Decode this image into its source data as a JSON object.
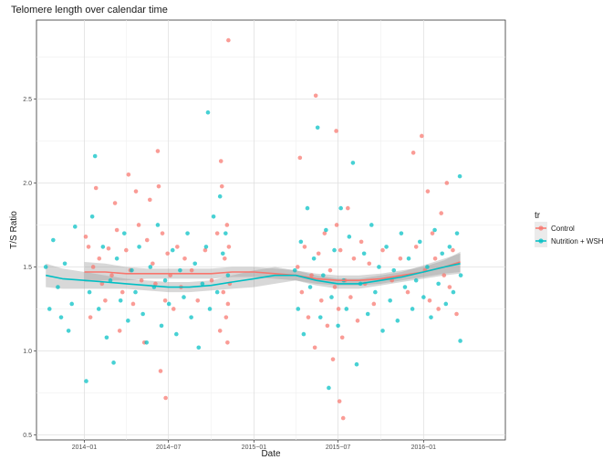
{
  "chart_data": {
    "type": "scatter",
    "title": "Telomere length over calendar time",
    "xlabel": "Date",
    "ylabel": "T/S Ratio",
    "x_axis": {
      "type": "date",
      "range": [
        "2013-09-20",
        "2016-06-25"
      ],
      "ticks": [
        {
          "date": "2014-01-01",
          "label": "2014−01"
        },
        {
          "date": "2014-07-01",
          "label": "2014−07"
        },
        {
          "date": "2015-01-01",
          "label": "2015−01"
        },
        {
          "date": "2015-07-01",
          "label": "2015−07"
        },
        {
          "date": "2016-01-01",
          "label": "2016−01"
        }
      ]
    },
    "y_axis": {
      "range": [
        0.47,
        2.97
      ],
      "ticks": [
        {
          "value": 0.5,
          "label": "0.5"
        },
        {
          "value": 1.0,
          "label": "1.0"
        },
        {
          "value": 1.5,
          "label": "1.5"
        },
        {
          "value": 2.0,
          "label": "2.0"
        },
        {
          "value": 2.5,
          "label": "2.5"
        }
      ]
    },
    "grid": true,
    "legend": {
      "title": "tr",
      "placement": "right",
      "entries": [
        "Control",
        "Nutrition + WSH"
      ]
    },
    "series": [
      {
        "name": "Control",
        "color": "#F8766D",
        "points": [
          [
            "2014-01-04",
            1.68
          ],
          [
            "2014-01-10",
            1.62
          ],
          [
            "2014-01-14",
            1.2
          ],
          [
            "2014-01-20",
            1.5
          ],
          [
            "2014-01-26",
            1.97
          ],
          [
            "2014-02-02",
            1.55
          ],
          [
            "2014-02-08",
            1.4
          ],
          [
            "2014-02-15",
            1.3
          ],
          [
            "2014-02-22",
            1.61
          ],
          [
            "2014-03-01",
            1.45
          ],
          [
            "2014-03-08",
            1.88
          ],
          [
            "2014-03-12",
            1.72
          ],
          [
            "2014-03-18",
            1.12
          ],
          [
            "2014-03-24",
            1.35
          ],
          [
            "2014-04-01",
            1.6
          ],
          [
            "2014-04-06",
            2.05
          ],
          [
            "2014-04-10",
            1.48
          ],
          [
            "2014-04-16",
            1.28
          ],
          [
            "2014-04-22",
            1.95
          ],
          [
            "2014-04-28",
            1.75
          ],
          [
            "2014-05-04",
            1.42
          ],
          [
            "2014-05-10",
            1.05
          ],
          [
            "2014-05-16",
            1.66
          ],
          [
            "2014-05-22",
            1.9
          ],
          [
            "2014-05-28",
            1.52
          ],
          [
            "2014-06-03",
            1.4
          ],
          [
            "2014-06-08",
            2.19
          ],
          [
            "2014-06-10",
            1.98
          ],
          [
            "2014-06-14",
            0.88
          ],
          [
            "2014-06-18",
            1.7
          ],
          [
            "2014-06-24",
            1.3
          ],
          [
            "2014-06-29",
            1.58
          ],
          [
            "2014-07-05",
            1.45
          ],
          [
            "2014-07-12",
            1.25
          ],
          [
            "2014-07-20",
            1.62
          ],
          [
            "2014-07-28",
            1.38
          ],
          [
            "2014-06-25",
            0.72
          ],
          [
            "2014-08-05",
            1.55
          ],
          [
            "2014-08-20",
            1.48
          ],
          [
            "2014-09-02",
            1.3
          ],
          [
            "2014-09-18",
            1.6
          ],
          [
            "2014-10-02",
            1.42
          ],
          [
            "2014-10-14",
            1.7
          ],
          [
            "2014-10-22",
            2.13
          ],
          [
            "2014-10-24",
            1.98
          ],
          [
            "2014-10-27",
            1.35
          ],
          [
            "2014-10-30",
            1.55
          ],
          [
            "2014-11-02",
            1.2
          ],
          [
            "2014-11-04",
            1.75
          ],
          [
            "2014-11-06",
            1.28
          ],
          [
            "2014-11-07",
            2.85
          ],
          [
            "2014-11-08",
            1.62
          ],
          [
            "2014-11-10",
            1.4
          ],
          [
            "2014-10-20",
            1.12
          ],
          [
            "2014-11-05",
            1.05
          ],
          [
            "2015-04-05",
            1.5
          ],
          [
            "2015-04-10",
            2.15
          ],
          [
            "2015-04-14",
            1.35
          ],
          [
            "2015-04-20",
            1.62
          ],
          [
            "2015-04-28",
            1.2
          ],
          [
            "2015-05-05",
            1.45
          ],
          [
            "2015-05-12",
            1.02
          ],
          [
            "2015-05-14",
            2.52
          ],
          [
            "2015-05-20",
            1.58
          ],
          [
            "2015-05-26",
            1.3
          ],
          [
            "2015-06-02",
            1.7
          ],
          [
            "2015-06-08",
            1.15
          ],
          [
            "2015-06-14",
            1.48
          ],
          [
            "2015-06-20",
            0.95
          ],
          [
            "2015-06-24",
            1.38
          ],
          [
            "2015-06-27",
            2.31
          ],
          [
            "2015-06-28",
            1.75
          ],
          [
            "2015-07-02",
            1.25
          ],
          [
            "2015-07-04",
            0.7
          ],
          [
            "2015-07-06",
            1.6
          ],
          [
            "2015-07-10",
            1.08
          ],
          [
            "2015-07-12",
            0.6
          ],
          [
            "2015-07-16",
            1.42
          ],
          [
            "2015-07-22",
            1.85
          ],
          [
            "2015-07-28",
            1.32
          ],
          [
            "2015-08-04",
            1.55
          ],
          [
            "2015-08-12",
            1.18
          ],
          [
            "2015-08-20",
            1.65
          ],
          [
            "2015-08-28",
            1.4
          ],
          [
            "2015-09-06",
            1.52
          ],
          [
            "2015-09-16",
            1.28
          ],
          [
            "2015-10-05",
            1.6
          ],
          [
            "2015-10-25",
            1.42
          ],
          [
            "2015-11-12",
            1.55
          ],
          [
            "2015-11-28",
            1.35
          ],
          [
            "2015-12-10",
            2.18
          ],
          [
            "2015-12-16",
            1.62
          ],
          [
            "2015-12-28",
            2.28
          ],
          [
            "2016-01-04",
            1.48
          ],
          [
            "2016-01-10",
            1.95
          ],
          [
            "2016-01-14",
            1.3
          ],
          [
            "2016-01-20",
            1.7
          ],
          [
            "2016-01-26",
            1.55
          ],
          [
            "2016-02-02",
            1.25
          ],
          [
            "2016-02-08",
            1.82
          ],
          [
            "2016-02-14",
            1.45
          ],
          [
            "2016-02-20",
            2.0
          ],
          [
            "2016-02-26",
            1.38
          ],
          [
            "2016-03-04",
            1.6
          ],
          [
            "2016-03-12",
            1.22
          ]
        ]
      },
      {
        "name": "Nutrition + WSH",
        "color": "#00BFC4",
        "points": [
          [
            "2013-10-10",
            1.5
          ],
          [
            "2013-10-18",
            1.25
          ],
          [
            "2013-10-26",
            1.66
          ],
          [
            "2013-11-05",
            1.38
          ],
          [
            "2013-11-12",
            1.2
          ],
          [
            "2013-11-20",
            1.52
          ],
          [
            "2013-11-28",
            1.12
          ],
          [
            "2013-12-05",
            1.28
          ],
          [
            "2013-12-12",
            1.74
          ],
          [
            "2014-01-05",
            0.82
          ],
          [
            "2014-01-12",
            1.35
          ],
          [
            "2014-01-18",
            1.8
          ],
          [
            "2014-01-24",
            2.16
          ],
          [
            "2014-02-01",
            1.25
          ],
          [
            "2014-02-10",
            1.62
          ],
          [
            "2014-02-18",
            1.08
          ],
          [
            "2014-02-26",
            1.42
          ],
          [
            "2014-03-05",
            0.93
          ],
          [
            "2014-03-12",
            1.55
          ],
          [
            "2014-03-20",
            1.3
          ],
          [
            "2014-03-28",
            1.7
          ],
          [
            "2014-04-05",
            1.18
          ],
          [
            "2014-04-13",
            1.48
          ],
          [
            "2014-04-21",
            1.35
          ],
          [
            "2014-04-29",
            1.62
          ],
          [
            "2014-05-07",
            1.22
          ],
          [
            "2014-05-15",
            1.05
          ],
          [
            "2014-05-23",
            1.5
          ],
          [
            "2014-05-31",
            1.38
          ],
          [
            "2014-06-08",
            1.75
          ],
          [
            "2014-06-16",
            1.15
          ],
          [
            "2014-06-24",
            1.42
          ],
          [
            "2014-07-02",
            1.28
          ],
          [
            "2014-07-10",
            1.6
          ],
          [
            "2014-07-18",
            1.1
          ],
          [
            "2014-07-26",
            1.48
          ],
          [
            "2014-08-03",
            1.32
          ],
          [
            "2014-08-11",
            1.7
          ],
          [
            "2014-08-19",
            1.2
          ],
          [
            "2014-08-27",
            1.52
          ],
          [
            "2014-09-04",
            1.02
          ],
          [
            "2014-09-12",
            1.4
          ],
          [
            "2014-09-20",
            1.62
          ],
          [
            "2014-09-24",
            2.42
          ],
          [
            "2014-09-28",
            1.25
          ],
          [
            "2014-10-06",
            1.8
          ],
          [
            "2014-10-14",
            1.35
          ],
          [
            "2014-10-20",
            1.92
          ],
          [
            "2014-10-26",
            1.58
          ],
          [
            "2014-11-01",
            1.7
          ],
          [
            "2014-11-06",
            1.45
          ],
          [
            "2015-03-30",
            1.48
          ],
          [
            "2015-04-06",
            1.25
          ],
          [
            "2015-04-12",
            1.65
          ],
          [
            "2015-04-18",
            1.1
          ],
          [
            "2015-04-26",
            1.85
          ],
          [
            "2015-05-02",
            1.38
          ],
          [
            "2015-05-10",
            1.55
          ],
          [
            "2015-05-18",
            2.33
          ],
          [
            "2015-05-24",
            1.2
          ],
          [
            "2015-05-30",
            1.45
          ],
          [
            "2015-06-05",
            1.72
          ],
          [
            "2015-06-11",
            0.78
          ],
          [
            "2015-06-17",
            1.32
          ],
          [
            "2015-06-23",
            1.6
          ],
          [
            "2015-07-01",
            1.15
          ],
          [
            "2015-07-07",
            1.85
          ],
          [
            "2015-07-13",
            1.42
          ],
          [
            "2015-07-19",
            1.25
          ],
          [
            "2015-07-25",
            1.68
          ],
          [
            "2015-08-02",
            2.12
          ],
          [
            "2015-08-10",
            0.92
          ],
          [
            "2015-08-18",
            1.4
          ],
          [
            "2015-08-26",
            1.58
          ],
          [
            "2015-09-03",
            1.22
          ],
          [
            "2015-09-11",
            1.75
          ],
          [
            "2015-09-19",
            1.35
          ],
          [
            "2015-09-27",
            1.5
          ],
          [
            "2015-10-05",
            1.12
          ],
          [
            "2015-10-13",
            1.62
          ],
          [
            "2015-10-21",
            1.3
          ],
          [
            "2015-10-29",
            1.48
          ],
          [
            "2015-11-06",
            1.18
          ],
          [
            "2015-11-14",
            1.7
          ],
          [
            "2015-11-22",
            1.38
          ],
          [
            "2015-11-30",
            1.55
          ],
          [
            "2015-12-08",
            1.25
          ],
          [
            "2015-12-16",
            1.42
          ],
          [
            "2015-12-24",
            1.65
          ],
          [
            "2016-01-01",
            1.32
          ],
          [
            "2016-01-09",
            1.5
          ],
          [
            "2016-01-17",
            1.2
          ],
          [
            "2016-01-25",
            1.72
          ],
          [
            "2016-02-02",
            1.4
          ],
          [
            "2016-02-10",
            1.58
          ],
          [
            "2016-02-18",
            1.28
          ],
          [
            "2016-02-26",
            1.62
          ],
          [
            "2016-03-05",
            1.35
          ],
          [
            "2016-03-13",
            1.7
          ],
          [
            "2016-03-19",
            2.04
          ],
          [
            "2016-03-20",
            1.06
          ],
          [
            "2016-03-21",
            1.45
          ]
        ]
      }
    ],
    "smooth": [
      {
        "name": "Control",
        "color": "#F8766D",
        "points": [
          [
            "2014-01-01",
            1.47
          ],
          [
            "2014-02-15",
            1.47
          ],
          [
            "2014-04-01",
            1.46
          ],
          [
            "2014-05-15",
            1.46
          ],
          [
            "2014-07-01",
            1.46
          ],
          [
            "2014-08-15",
            1.46
          ],
          [
            "2014-10-01",
            1.46
          ],
          [
            "2014-11-15",
            1.47
          ],
          [
            "2015-01-01",
            1.47
          ],
          [
            "2015-02-15",
            1.46
          ],
          [
            "2015-04-01",
            1.45
          ],
          [
            "2015-05-15",
            1.43
          ],
          [
            "2015-07-01",
            1.42
          ],
          [
            "2015-08-15",
            1.42
          ],
          [
            "2015-10-01",
            1.43
          ],
          [
            "2015-11-15",
            1.45
          ],
          [
            "2016-01-01",
            1.47
          ],
          [
            "2016-02-15",
            1.5
          ],
          [
            "2016-03-20",
            1.53
          ]
        ],
        "band": [
          0.06,
          0.05,
          0.04,
          0.03,
          0.03,
          0.03,
          0.03,
          0.03,
          0.03,
          0.03,
          0.03,
          0.03,
          0.03,
          0.03,
          0.03,
          0.03,
          0.03,
          0.04,
          0.06
        ]
      },
      {
        "name": "Nutrition + WSH",
        "color": "#00BFC4",
        "points": [
          [
            "2013-10-10",
            1.45
          ],
          [
            "2013-11-15",
            1.43
          ],
          [
            "2014-01-01",
            1.42
          ],
          [
            "2014-02-15",
            1.41
          ],
          [
            "2014-04-01",
            1.4
          ],
          [
            "2014-05-15",
            1.39
          ],
          [
            "2014-07-01",
            1.38
          ],
          [
            "2014-08-15",
            1.38
          ],
          [
            "2014-10-01",
            1.39
          ],
          [
            "2014-11-15",
            1.41
          ],
          [
            "2015-01-01",
            1.43
          ],
          [
            "2015-02-15",
            1.45
          ],
          [
            "2015-04-01",
            1.45
          ],
          [
            "2015-05-15",
            1.42
          ],
          [
            "2015-07-01",
            1.4
          ],
          [
            "2015-08-15",
            1.4
          ],
          [
            "2015-10-01",
            1.42
          ],
          [
            "2015-11-15",
            1.44
          ],
          [
            "2016-01-01",
            1.47
          ],
          [
            "2016-02-15",
            1.5
          ],
          [
            "2016-03-20",
            1.52
          ]
        ],
        "band": [
          0.07,
          0.06,
          0.05,
          0.04,
          0.03,
          0.03,
          0.03,
          0.03,
          0.03,
          0.04,
          0.05,
          0.05,
          0.03,
          0.03,
          0.03,
          0.03,
          0.03,
          0.03,
          0.04,
          0.05,
          0.06
        ]
      }
    ]
  }
}
